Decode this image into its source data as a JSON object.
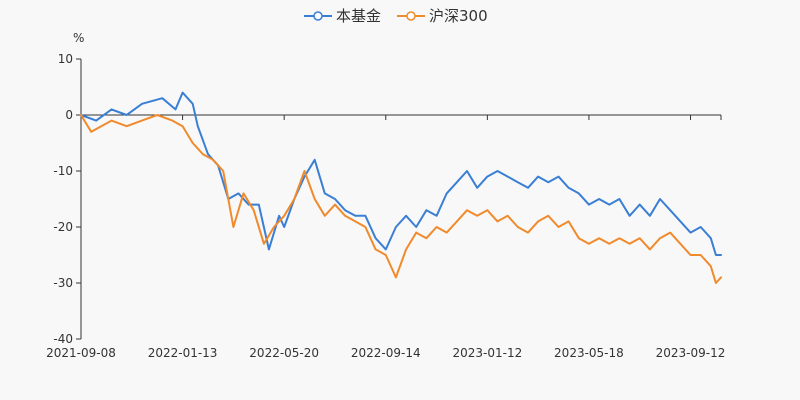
{
  "chart_data": {
    "type": "line",
    "title": "",
    "ylabel": "%",
    "xlabel": "",
    "ylim": [
      -40,
      10
    ],
    "y_ticks": [
      10,
      0,
      -10,
      -20,
      -30,
      -40
    ],
    "x_tick_labels": [
      "2021-09-08",
      "2022-01-13",
      "2022-05-20",
      "2022-09-14",
      "2023-01-12",
      "2023-05-18",
      "2023-09-12"
    ],
    "x_tick_index": [
      0,
      1,
      2,
      3,
      4,
      5,
      6
    ],
    "x_max_index": 6.3,
    "series": [
      {
        "name": "本基金",
        "color": "#3a7fd4",
        "x": [
          0,
          0.15,
          0.3,
          0.45,
          0.6,
          0.8,
          0.93,
          1.0,
          1.1,
          1.15,
          1.25,
          1.35,
          1.45,
          1.55,
          1.65,
          1.75,
          1.85,
          1.95,
          2.0,
          2.1,
          2.2,
          2.3,
          2.4,
          2.5,
          2.6,
          2.7,
          2.8,
          2.9,
          3.0,
          3.1,
          3.2,
          3.3,
          3.4,
          3.5,
          3.6,
          3.7,
          3.8,
          3.9,
          4.0,
          4.1,
          4.2,
          4.3,
          4.4,
          4.5,
          4.6,
          4.7,
          4.8,
          4.9,
          5.0,
          5.1,
          5.2,
          5.3,
          5.4,
          5.5,
          5.6,
          5.7,
          5.8,
          5.9,
          6.0,
          6.1,
          6.2,
          6.25,
          6.3
        ],
        "values": [
          0,
          -1,
          1,
          0,
          2,
          3,
          1,
          4,
          2,
          -2,
          -7,
          -9,
          -15,
          -14,
          -16,
          -16,
          -24,
          -18,
          -20,
          -15,
          -11,
          -8,
          -14,
          -15,
          -17,
          -18,
          -18,
          -22,
          -24,
          -20,
          -18,
          -20,
          -17,
          -18,
          -14,
          -12,
          -10,
          -13,
          -11,
          -10,
          -11,
          -12,
          -13,
          -11,
          -12,
          -11,
          -13,
          -14,
          -16,
          -15,
          -16,
          -15,
          -18,
          -16,
          -18,
          -15,
          -17,
          -19,
          -21,
          -20,
          -22,
          -25,
          -25
        ]
      },
      {
        "name": "沪深300",
        "color": "#f08a2c",
        "x": [
          0,
          0.1,
          0.2,
          0.3,
          0.45,
          0.6,
          0.75,
          0.9,
          1.0,
          1.1,
          1.2,
          1.3,
          1.4,
          1.5,
          1.6,
          1.7,
          1.8,
          1.9,
          2.0,
          2.1,
          2.2,
          2.3,
          2.4,
          2.5,
          2.6,
          2.7,
          2.8,
          2.9,
          3.0,
          3.1,
          3.2,
          3.3,
          3.4,
          3.5,
          3.6,
          3.7,
          3.8,
          3.9,
          4.0,
          4.1,
          4.2,
          4.3,
          4.4,
          4.5,
          4.6,
          4.7,
          4.8,
          4.9,
          5.0,
          5.1,
          5.2,
          5.3,
          5.4,
          5.5,
          5.6,
          5.7,
          5.8,
          5.9,
          6.0,
          6.1,
          6.2,
          6.25,
          6.3
        ],
        "values": [
          0,
          -3,
          -2,
          -1,
          -2,
          -1,
          0,
          -1,
          -2,
          -5,
          -7,
          -8,
          -10,
          -20,
          -14,
          -17,
          -23,
          -20,
          -18,
          -15,
          -10,
          -15,
          -18,
          -16,
          -18,
          -19,
          -20,
          -24,
          -25,
          -29,
          -24,
          -21,
          -22,
          -20,
          -21,
          -19,
          -17,
          -18,
          -17,
          -19,
          -18,
          -20,
          -21,
          -19,
          -18,
          -20,
          -19,
          -22,
          -23,
          -22,
          -23,
          -22,
          -23,
          -22,
          -24,
          -22,
          -21,
          -23,
          -25,
          -25,
          -27,
          -30,
          -29
        ]
      }
    ]
  }
}
